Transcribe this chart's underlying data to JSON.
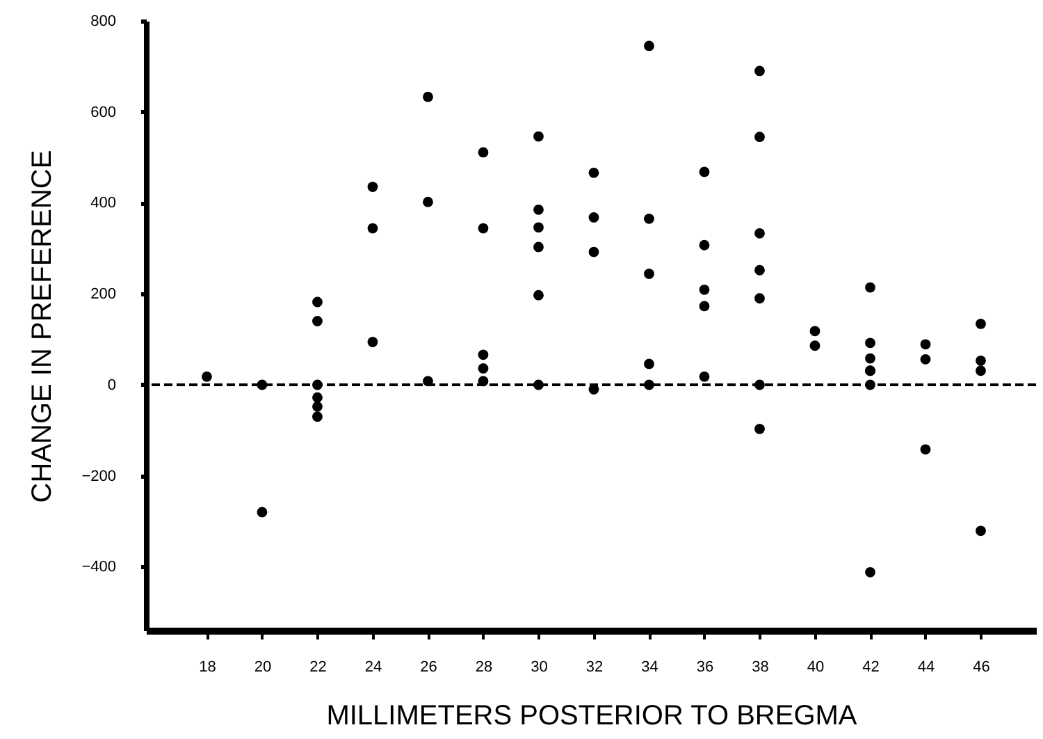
{
  "chart_data": {
    "type": "scatter",
    "xlabel": "MILLIMETERS POSTERIOR TO  BREGMA",
    "ylabel": "CHANGE IN PREFERENCE",
    "xlim": [
      15.8,
      48
    ],
    "xticks": [
      18,
      20,
      22,
      24,
      26,
      28,
      30,
      32,
      34,
      36,
      38,
      40,
      42,
      44,
      46
    ],
    "ylim": [
      -540,
      800
    ],
    "yticks": [
      -400,
      -200,
      0,
      200,
      400,
      600,
      800
    ],
    "grid": false,
    "marker": "circle",
    "ref_lines": [
      {
        "axis": "y",
        "value": 0,
        "color": "#000000",
        "line_style": "dashed"
      }
    ],
    "series": [
      {
        "color": "#000000",
        "x": [
          18,
          20,
          20,
          22,
          22,
          22,
          22,
          22,
          22,
          24,
          24,
          24,
          26,
          26,
          26,
          28,
          28,
          28,
          28,
          28,
          30,
          30,
          30,
          30,
          30,
          30,
          32,
          32,
          32,
          32,
          34,
          34,
          34,
          34,
          34,
          36,
          36,
          36,
          36,
          36,
          38,
          38,
          38,
          38,
          38,
          38,
          38,
          40,
          40,
          42,
          42,
          42,
          42,
          42,
          42,
          42,
          44,
          44,
          44,
          46,
          46,
          46,
          46
        ],
        "values": [
          18,
          0,
          -280,
          182,
          140,
          0,
          -28,
          -48,
          -70,
          435,
          344,
          94,
          633,
          402,
          8,
          511,
          344,
          66,
          36,
          8,
          546,
          385,
          346,
          303,
          197,
          0,
          466,
          368,
          292,
          -10,
          745,
          365,
          244,
          46,
          0,
          468,
          307,
          209,
          173,
          18,
          690,
          545,
          333,
          252,
          190,
          0,
          -97,
          118,
          86,
          214,
          92,
          58,
          31,
          31,
          0,
          -412,
          89,
          56,
          -142,
          134,
          53,
          31,
          -321
        ]
      }
    ]
  }
}
